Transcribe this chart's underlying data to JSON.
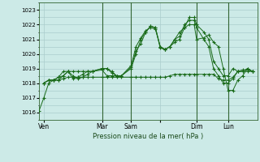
{
  "background_color": "#cceae7",
  "grid_color": "#aacccc",
  "line_color": "#1a6b1a",
  "xlabel": "Pression niveau de la mer( hPa )",
  "ylim": [
    1015.5,
    1023.5
  ],
  "yticks": [
    1016,
    1017,
    1018,
    1019,
    1020,
    1021,
    1022,
    1023
  ],
  "xlim": [
    0,
    90
  ],
  "xtick_positions": [
    2,
    26,
    38,
    50,
    65,
    78
  ],
  "xtick_labels": [
    "Ven",
    "Mar",
    "Sam",
    "",
    "Dim",
    "Lun"
  ],
  "vline_positions": [
    26,
    38,
    65,
    78
  ],
  "series": [
    {
      "x": [
        0,
        2,
        4,
        6,
        8,
        10,
        12,
        14,
        16,
        18,
        20,
        22,
        26,
        28,
        30,
        32,
        34,
        38,
        40,
        42,
        44,
        46,
        48,
        50,
        52,
        54,
        56,
        58,
        60,
        62,
        64,
        65,
        68,
        70,
        72,
        74,
        76,
        78,
        80,
        82,
        84,
        86,
        88
      ],
      "y": [
        1016.1,
        1017.0,
        1018.0,
        1018.2,
        1018.2,
        1018.5,
        1018.8,
        1018.5,
        1018.3,
        1018.4,
        1018.6,
        1018.8,
        1019.0,
        1019.0,
        1018.7,
        1018.5,
        1018.5,
        1019.2,
        1020.5,
        1021.1,
        1021.6,
        1021.8,
        1021.7,
        1020.5,
        1020.3,
        1020.5,
        1021.0,
        1021.5,
        1021.8,
        1022.0,
        1022.0,
        1021.0,
        1021.1,
        1021.3,
        1020.8,
        1020.5,
        1019.0,
        1017.5,
        1017.5,
        1018.2,
        1018.5,
        1019.0,
        1018.8
      ]
    },
    {
      "x": [
        2,
        4,
        6,
        8,
        10,
        12,
        14,
        16,
        18,
        20,
        22,
        26,
        28,
        30,
        32,
        34,
        38,
        40,
        42,
        44,
        46,
        48,
        50,
        52,
        54,
        56,
        58,
        60,
        62,
        64,
        65,
        68,
        70,
        72,
        74,
        76,
        78,
        80,
        82,
        84,
        86,
        88
      ],
      "y": [
        1018.0,
        1018.2,
        1018.2,
        1018.4,
        1018.8,
        1018.8,
        1018.3,
        1018.4,
        1018.6,
        1018.8,
        1018.8,
        1018.9,
        1018.5,
        1018.5,
        1018.5,
        1018.5,
        1019.1,
        1020.2,
        1020.7,
        1021.5,
        1021.9,
        1021.8,
        1020.4,
        1020.3,
        1020.5,
        1020.8,
        1021.0,
        1021.8,
        1022.5,
        1022.5,
        1022.0,
        1021.5,
        1021.0,
        1019.5,
        1019.0,
        1018.5,
        1018.5,
        1019.0,
        1018.8,
        1018.8,
        1019.0,
        1018.8
      ]
    },
    {
      "x": [
        2,
        4,
        6,
        8,
        10,
        12,
        14,
        16,
        18,
        20,
        22,
        26,
        28,
        30,
        32,
        34,
        38,
        40,
        42,
        44,
        46,
        48,
        50,
        52,
        54,
        56,
        58,
        60,
        62,
        64,
        65,
        68,
        70,
        72,
        74,
        76,
        78,
        80,
        82,
        84,
        86,
        88
      ],
      "y": [
        1018.0,
        1018.2,
        1018.2,
        1018.4,
        1018.5,
        1018.8,
        1018.8,
        1018.8,
        1018.8,
        1018.8,
        1018.8,
        1019.0,
        1019.0,
        1018.8,
        1018.5,
        1018.5,
        1019.0,
        1020.0,
        1021.0,
        1021.5,
        1021.9,
        1021.8,
        1020.5,
        1020.3,
        1020.5,
        1021.0,
        1021.2,
        1022.0,
        1022.3,
        1022.3,
        1021.8,
        1021.0,
        1020.5,
        1019.0,
        1018.5,
        1018.0,
        1018.0,
        1018.3,
        1018.8,
        1018.8,
        1018.8,
        1018.8
      ]
    },
    {
      "x": [
        2,
        4,
        6,
        8,
        10,
        12,
        14,
        16,
        18,
        20,
        22,
        26,
        28,
        30,
        32,
        34,
        38,
        40,
        42,
        44,
        46,
        48,
        50,
        52,
        54,
        56,
        58,
        60,
        62,
        64,
        65,
        68,
        70,
        72,
        74,
        76,
        78,
        80,
        82,
        84,
        86,
        88
      ],
      "y": [
        1018.0,
        1018.2,
        1018.2,
        1018.2,
        1018.3,
        1018.4,
        1018.4,
        1018.4,
        1018.4,
        1018.4,
        1018.4,
        1018.4,
        1018.4,
        1018.4,
        1018.4,
        1018.4,
        1018.4,
        1018.4,
        1018.4,
        1018.4,
        1018.4,
        1018.4,
        1018.4,
        1018.4,
        1018.5,
        1018.6,
        1018.6,
        1018.6,
        1018.6,
        1018.6,
        1018.6,
        1018.6,
        1018.6,
        1018.6,
        1018.3,
        1018.2,
        1018.2,
        1018.4,
        1018.8,
        1018.9,
        1018.9,
        1018.8
      ]
    }
  ]
}
